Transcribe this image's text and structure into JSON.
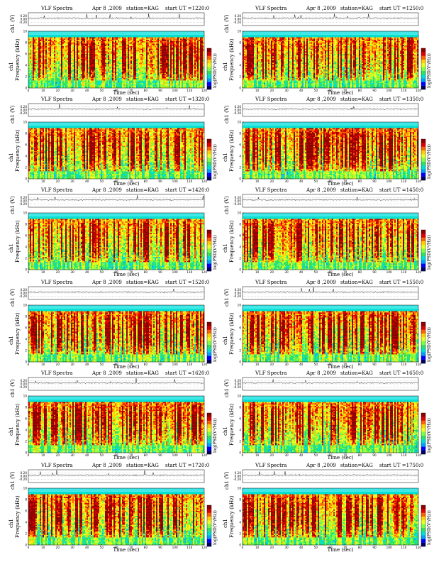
{
  "chart_data": [
    {
      "type": "heatmap",
      "title": "VLF Spectra",
      "date": "Apr 8 ,2009",
      "station": "station=KAG",
      "start": "start  UT  =1220:0"
    },
    {
      "type": "heatmap",
      "title": "VLF Spectra",
      "date": "Apr 8 ,2009",
      "station": "station=KAG",
      "start": "start  UT  =1250:0"
    },
    {
      "type": "heatmap",
      "title": "VLF Spectra",
      "date": "Apr 8 ,2009",
      "station": "station=KAG",
      "start": "start  UT  =1320:0"
    },
    {
      "type": "heatmap",
      "title": "VLF Spectra",
      "date": "Apr 8 ,2009",
      "station": "station=KAG",
      "start": "start  UT  =1350:0"
    },
    {
      "type": "heatmap",
      "title": "VLF Spectra",
      "date": "Apr 8 ,2009",
      "station": "station=KAG",
      "start": "start  UT  =1420:0"
    },
    {
      "type": "heatmap",
      "title": "VLF Spectra",
      "date": "Apr 8 ,2009",
      "station": "station=KAG",
      "start": "start  UT  =1450:0"
    },
    {
      "type": "heatmap",
      "title": "VLF Spectra",
      "date": "Apr 8 ,2009",
      "station": "station=KAG",
      "start": "start  UT  =1520:0"
    },
    {
      "type": "heatmap",
      "title": "VLF Spectra",
      "date": "Apr 8 ,2009",
      "station": "station=KAG",
      "start": "start  UT  =1550:0"
    },
    {
      "type": "heatmap",
      "title": "VLF Spectra",
      "date": "Apr 8 ,2009",
      "station": "station=KAG",
      "start": "start  UT  =1620:0"
    },
    {
      "type": "heatmap",
      "title": "VLF Spectra",
      "date": "Apr 8 ,2009",
      "station": "station=KAG",
      "start": "start  UT  =1650:0"
    },
    {
      "type": "heatmap",
      "title": "VLF Spectra",
      "date": "Apr 8 ,2009",
      "station": "station=KAG",
      "start": "start  UT  =1720:0"
    },
    {
      "type": "heatmap",
      "title": "VLF Spectra",
      "date": "Apr 8 ,2009",
      "station": "station=KAG",
      "start": "start  UT  =1750:0"
    }
  ],
  "common": {
    "xlabel": "Time  (sec)",
    "ylabel_freq": "Frequency  (kHz)",
    "ylabel_ch1": "ch1",
    "ylabel_top": "ch1 (V)",
    "colorbar_label": "log(PSD(V²/Hz))",
    "x_ticks": [
      0,
      10,
      20,
      30,
      40,
      50,
      60,
      70,
      80,
      90,
      100,
      110,
      120
    ],
    "xlim": [
      0,
      120
    ],
    "freq_ticks": [
      0,
      2,
      4,
      6,
      8,
      10
    ],
    "ylim_freq": [
      0,
      10
    ],
    "top_ticks": [
      "0.20",
      "0.00",
      "-0.20"
    ],
    "colormap": [
      "#00005e",
      "#0000ff",
      "#00a0ff",
      "#00e0d0",
      "#30e060",
      "#80ff40",
      "#e8ff20",
      "#ffd000",
      "#ff6000",
      "#e00000",
      "#900000"
    ]
  }
}
